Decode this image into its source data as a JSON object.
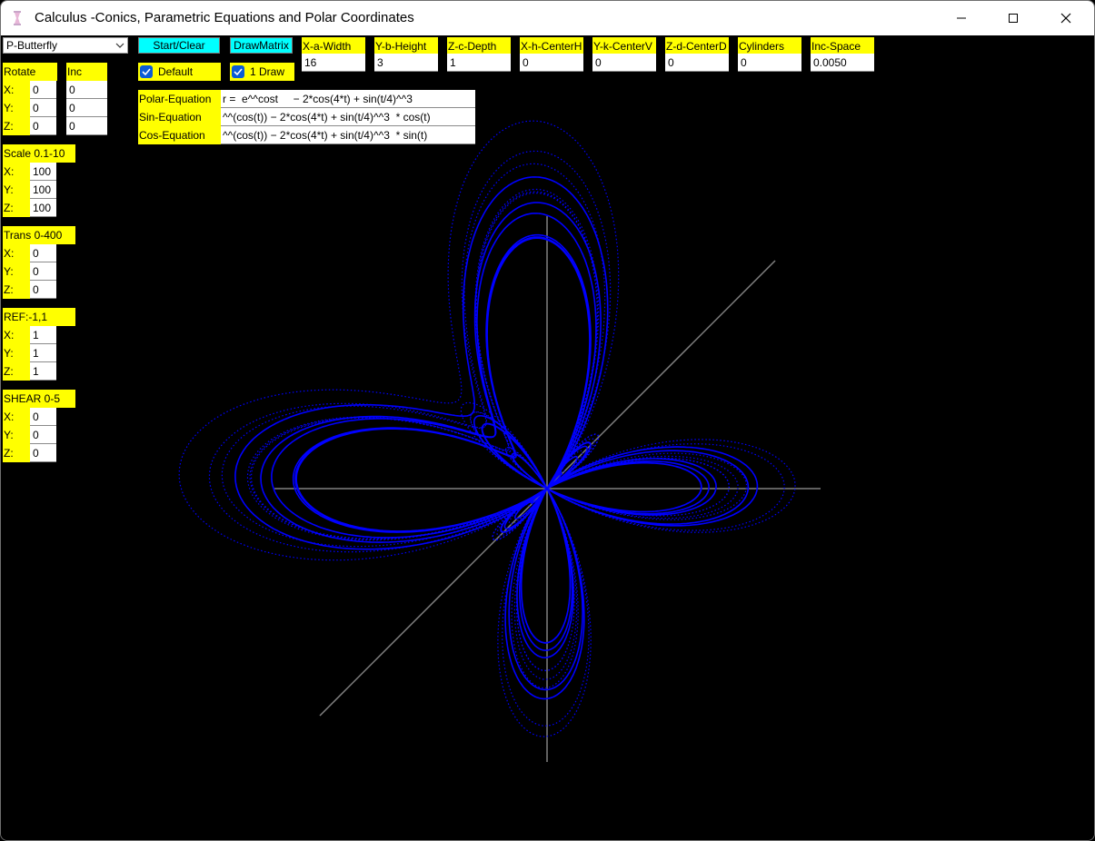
{
  "window": {
    "title": "Calculus -Conics, Parametric Equations and Polar Coordinates",
    "minimize_icon": "minimize-icon",
    "maximize_icon": "maximize-icon",
    "close_icon": "close-icon"
  },
  "toolbar": {
    "preset": "P-Butterfly",
    "start_clear": "Start/Clear",
    "draw_matrix": "DrawMatrix",
    "default_label": "Default",
    "default_checked": true,
    "one_draw_label": "1 Draw",
    "one_draw_checked": true
  },
  "params": [
    {
      "label": "X-a-Width",
      "value": "16"
    },
    {
      "label": "Y-b-Height",
      "value": "3"
    },
    {
      "label": "Z-c-Depth",
      "value": "1"
    },
    {
      "label": "X-h-CenterH",
      "value": "0"
    },
    {
      "label": "Y-k-CenterV",
      "value": "0"
    },
    {
      "label": "Z-d-CenterD",
      "value": "0"
    },
    {
      "label": "Cylinders",
      "value": "0"
    },
    {
      "label": "Inc-Space",
      "value": "0.0050"
    }
  ],
  "rotate": {
    "label": "Rotate",
    "inc_label": "Inc",
    "x_label": "X:",
    "y_label": "Y:",
    "z_label": "Z:",
    "x": "0",
    "y": "0",
    "z": "0",
    "inc_x": "0",
    "inc_y": "0",
    "inc_z": "0"
  },
  "scale": {
    "label": "Scale 0.1-10",
    "x_label": "X:",
    "y_label": "Y:",
    "z_label": "Z:",
    "x": "100",
    "y": "100",
    "z": "100"
  },
  "trans": {
    "label": "Trans 0-400",
    "x_label": "X:",
    "y_label": "Y:",
    "z_label": "Z:",
    "x": "0",
    "y": "0",
    "z": "0"
  },
  "ref": {
    "label": "REF:-1,1",
    "x_label": "X:",
    "y_label": "Y:",
    "z_label": "Z:",
    "x": "1",
    "y": "1",
    "z": "1"
  },
  "shear": {
    "label": "SHEAR 0-5",
    "x_label": "X:",
    "y_label": "Y:",
    "z_label": "Z:",
    "x": "0",
    "y": "0",
    "z": "0"
  },
  "equations": {
    "polar_label": "Polar-Equation",
    "polar_value": "r =  e^^cost     − 2*cos(4*t) + sin(t/4)^^3",
    "sin_label": "Sin-Equation",
    "sin_value": "^^(cos(t)) − 2*cos(4*t) + sin(t/4)^^3  * cos(t)",
    "cos_label": "Cos-Equation",
    "cos_value": "^^(cos(t)) − 2*cos(4*t) + sin(t/4)^^3  * sin(t)"
  },
  "colors": {
    "label_bg": "#ffff00",
    "button_bg": "#00ffff",
    "curve": "#0000ff",
    "axes": "#808080",
    "canvas": "#000000"
  }
}
